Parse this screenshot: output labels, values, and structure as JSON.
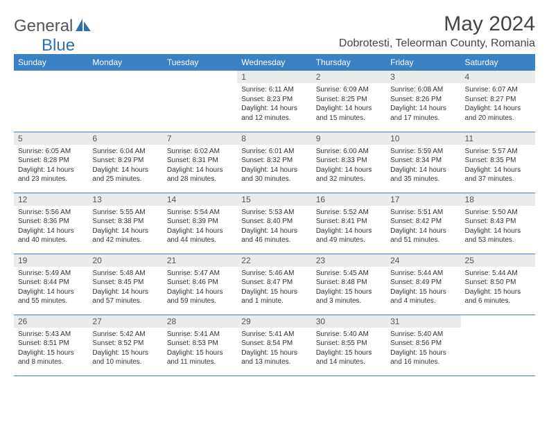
{
  "brand": {
    "name_left": "General",
    "name_right": "Blue"
  },
  "title": "May 2024",
  "location": "Dobrotesti, Teleorman County, Romania",
  "colors": {
    "header_bg": "#3b82c4",
    "header_fg": "#ffffff",
    "daynum_bg": "#ebebeb",
    "text": "#333333",
    "rule": "#3b82c4",
    "logo_gray": "#6b6b6b",
    "logo_blue": "#2f6fb0"
  },
  "weekdays": [
    "Sunday",
    "Monday",
    "Tuesday",
    "Wednesday",
    "Thursday",
    "Friday",
    "Saturday"
  ],
  "first_weekday_index": 3,
  "days": [
    {
      "n": 1,
      "sunrise": "6:11 AM",
      "sunset": "8:23 PM",
      "daylight": "14 hours and 12 minutes."
    },
    {
      "n": 2,
      "sunrise": "6:09 AM",
      "sunset": "8:25 PM",
      "daylight": "14 hours and 15 minutes."
    },
    {
      "n": 3,
      "sunrise": "6:08 AM",
      "sunset": "8:26 PM",
      "daylight": "14 hours and 17 minutes."
    },
    {
      "n": 4,
      "sunrise": "6:07 AM",
      "sunset": "8:27 PM",
      "daylight": "14 hours and 20 minutes."
    },
    {
      "n": 5,
      "sunrise": "6:05 AM",
      "sunset": "8:28 PM",
      "daylight": "14 hours and 23 minutes."
    },
    {
      "n": 6,
      "sunrise": "6:04 AM",
      "sunset": "8:29 PM",
      "daylight": "14 hours and 25 minutes."
    },
    {
      "n": 7,
      "sunrise": "6:02 AM",
      "sunset": "8:31 PM",
      "daylight": "14 hours and 28 minutes."
    },
    {
      "n": 8,
      "sunrise": "6:01 AM",
      "sunset": "8:32 PM",
      "daylight": "14 hours and 30 minutes."
    },
    {
      "n": 9,
      "sunrise": "6:00 AM",
      "sunset": "8:33 PM",
      "daylight": "14 hours and 32 minutes."
    },
    {
      "n": 10,
      "sunrise": "5:59 AM",
      "sunset": "8:34 PM",
      "daylight": "14 hours and 35 minutes."
    },
    {
      "n": 11,
      "sunrise": "5:57 AM",
      "sunset": "8:35 PM",
      "daylight": "14 hours and 37 minutes."
    },
    {
      "n": 12,
      "sunrise": "5:56 AM",
      "sunset": "8:36 PM",
      "daylight": "14 hours and 40 minutes."
    },
    {
      "n": 13,
      "sunrise": "5:55 AM",
      "sunset": "8:38 PM",
      "daylight": "14 hours and 42 minutes."
    },
    {
      "n": 14,
      "sunrise": "5:54 AM",
      "sunset": "8:39 PM",
      "daylight": "14 hours and 44 minutes."
    },
    {
      "n": 15,
      "sunrise": "5:53 AM",
      "sunset": "8:40 PM",
      "daylight": "14 hours and 46 minutes."
    },
    {
      "n": 16,
      "sunrise": "5:52 AM",
      "sunset": "8:41 PM",
      "daylight": "14 hours and 49 minutes."
    },
    {
      "n": 17,
      "sunrise": "5:51 AM",
      "sunset": "8:42 PM",
      "daylight": "14 hours and 51 minutes."
    },
    {
      "n": 18,
      "sunrise": "5:50 AM",
      "sunset": "8:43 PM",
      "daylight": "14 hours and 53 minutes."
    },
    {
      "n": 19,
      "sunrise": "5:49 AM",
      "sunset": "8:44 PM",
      "daylight": "14 hours and 55 minutes."
    },
    {
      "n": 20,
      "sunrise": "5:48 AM",
      "sunset": "8:45 PM",
      "daylight": "14 hours and 57 minutes."
    },
    {
      "n": 21,
      "sunrise": "5:47 AM",
      "sunset": "8:46 PM",
      "daylight": "14 hours and 59 minutes."
    },
    {
      "n": 22,
      "sunrise": "5:46 AM",
      "sunset": "8:47 PM",
      "daylight": "15 hours and 1 minute."
    },
    {
      "n": 23,
      "sunrise": "5:45 AM",
      "sunset": "8:48 PM",
      "daylight": "15 hours and 3 minutes."
    },
    {
      "n": 24,
      "sunrise": "5:44 AM",
      "sunset": "8:49 PM",
      "daylight": "15 hours and 4 minutes."
    },
    {
      "n": 25,
      "sunrise": "5:44 AM",
      "sunset": "8:50 PM",
      "daylight": "15 hours and 6 minutes."
    },
    {
      "n": 26,
      "sunrise": "5:43 AM",
      "sunset": "8:51 PM",
      "daylight": "15 hours and 8 minutes."
    },
    {
      "n": 27,
      "sunrise": "5:42 AM",
      "sunset": "8:52 PM",
      "daylight": "15 hours and 10 minutes."
    },
    {
      "n": 28,
      "sunrise": "5:41 AM",
      "sunset": "8:53 PM",
      "daylight": "15 hours and 11 minutes."
    },
    {
      "n": 29,
      "sunrise": "5:41 AM",
      "sunset": "8:54 PM",
      "daylight": "15 hours and 13 minutes."
    },
    {
      "n": 30,
      "sunrise": "5:40 AM",
      "sunset": "8:55 PM",
      "daylight": "15 hours and 14 minutes."
    },
    {
      "n": 31,
      "sunrise": "5:40 AM",
      "sunset": "8:56 PM",
      "daylight": "15 hours and 16 minutes."
    }
  ],
  "labels": {
    "sunrise": "Sunrise:",
    "sunset": "Sunset:",
    "daylight": "Daylight:"
  }
}
